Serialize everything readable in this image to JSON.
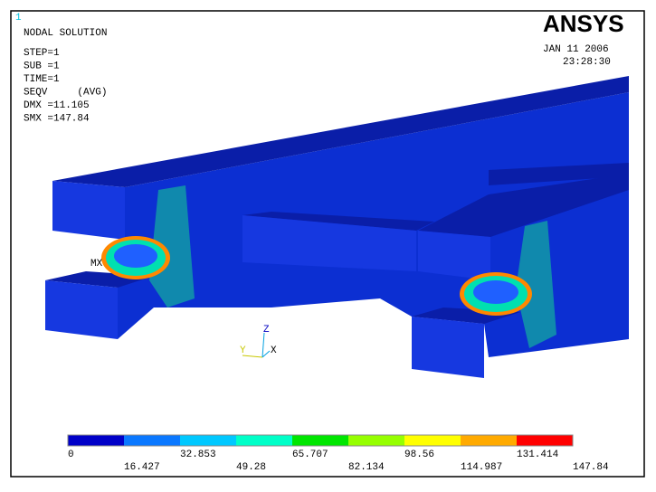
{
  "window_number": "1",
  "info": {
    "title": "NODAL SOLUTION",
    "lines": [
      "STEP=1",
      "SUB =1",
      "TIME=1",
      "SEQV     (AVG)",
      "DMX =11.105",
      "SMX =147.84"
    ]
  },
  "logo": "ANSYS",
  "date": "JAN 11 2006",
  "time": "23:28:30",
  "max_marker": "MX",
  "triad": {
    "z": "Z",
    "y": "Y",
    "x": "X"
  },
  "legend": {
    "labels": [
      "0",
      "16.427",
      "32.853",
      "49.28",
      "65.707",
      "82.134",
      "98.56",
      "114.987",
      "131.414",
      "147.84"
    ],
    "colors": [
      "#0000c8",
      "#0a78ff",
      "#00c8ff",
      "#00ffc8",
      "#00e600",
      "#96ff00",
      "#ffff00",
      "#ffaa00",
      "#ff0000"
    ]
  }
}
